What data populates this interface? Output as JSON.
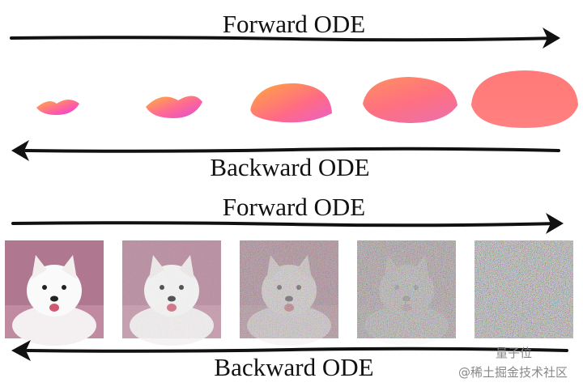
{
  "top_panel": {
    "forward_label": "Forward ODE",
    "backward_label": "Backward ODE"
  },
  "bottom_panel": {
    "forward_label": "Forward ODE",
    "backward_label": "Backward ODE"
  },
  "watermark": {
    "source": "量子位",
    "platform": "@稀土掘金技术社区"
  }
}
